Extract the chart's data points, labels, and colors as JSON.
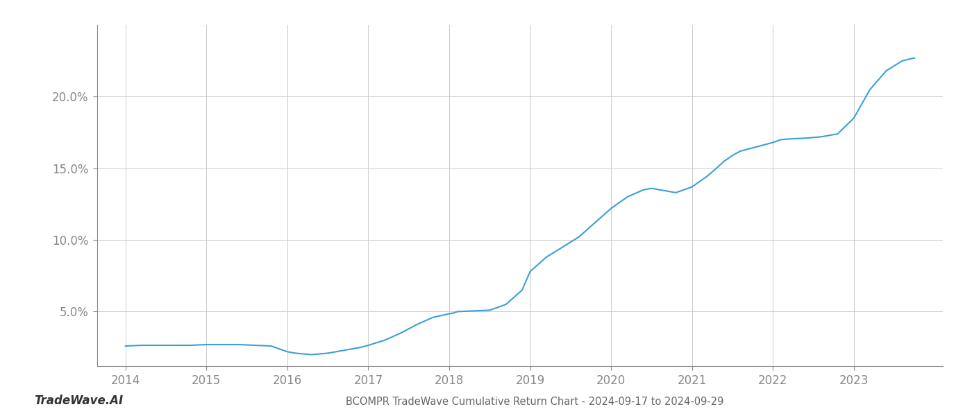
{
  "title": "BCOMPR TradeWave Cumulative Return Chart - 2024-09-17 to 2024-09-29",
  "watermark": "TradeWave.AI",
  "line_color": "#3a9fd8",
  "line_width": 1.5,
  "background_color": "#ffffff",
  "grid_color": "#cccccc",
  "x_values": [
    2014.0,
    2014.2,
    2014.4,
    2014.6,
    2014.8,
    2015.0,
    2015.2,
    2015.4,
    2015.6,
    2015.8,
    2016.0,
    2016.1,
    2016.2,
    2016.3,
    2016.5,
    2016.7,
    2016.9,
    2017.0,
    2017.2,
    2017.4,
    2017.6,
    2017.8,
    2018.0,
    2018.05,
    2018.1,
    2018.3,
    2018.5,
    2018.7,
    2018.9,
    2019.0,
    2019.2,
    2019.4,
    2019.6,
    2019.8,
    2020.0,
    2020.2,
    2020.4,
    2020.5,
    2020.6,
    2020.8,
    2021.0,
    2021.2,
    2021.4,
    2021.5,
    2021.6,
    2021.8,
    2022.0,
    2022.1,
    2022.2,
    2022.4,
    2022.6,
    2022.8,
    2023.0,
    2023.2,
    2023.4,
    2023.6,
    2023.75
  ],
  "y_values": [
    2.6,
    2.65,
    2.65,
    2.65,
    2.65,
    2.7,
    2.7,
    2.7,
    2.65,
    2.6,
    2.2,
    2.1,
    2.05,
    2.0,
    2.1,
    2.3,
    2.5,
    2.65,
    3.0,
    3.5,
    4.1,
    4.6,
    4.85,
    4.9,
    5.0,
    5.05,
    5.1,
    5.5,
    6.5,
    7.8,
    8.8,
    9.5,
    10.2,
    11.2,
    12.2,
    13.0,
    13.5,
    13.6,
    13.5,
    13.3,
    13.7,
    14.5,
    15.5,
    15.9,
    16.2,
    16.5,
    16.8,
    17.0,
    17.05,
    17.1,
    17.2,
    17.4,
    18.5,
    20.5,
    21.8,
    22.5,
    22.7
  ],
  "x_ticks": [
    2014,
    2015,
    2016,
    2017,
    2018,
    2019,
    2020,
    2021,
    2022,
    2023
  ],
  "y_ticks": [
    5.0,
    10.0,
    15.0,
    20.0
  ],
  "ylim": [
    1.2,
    25.0
  ],
  "xlim": [
    2013.65,
    2024.1
  ],
  "title_fontsize": 10.5,
  "tick_fontsize": 12,
  "watermark_fontsize": 12
}
